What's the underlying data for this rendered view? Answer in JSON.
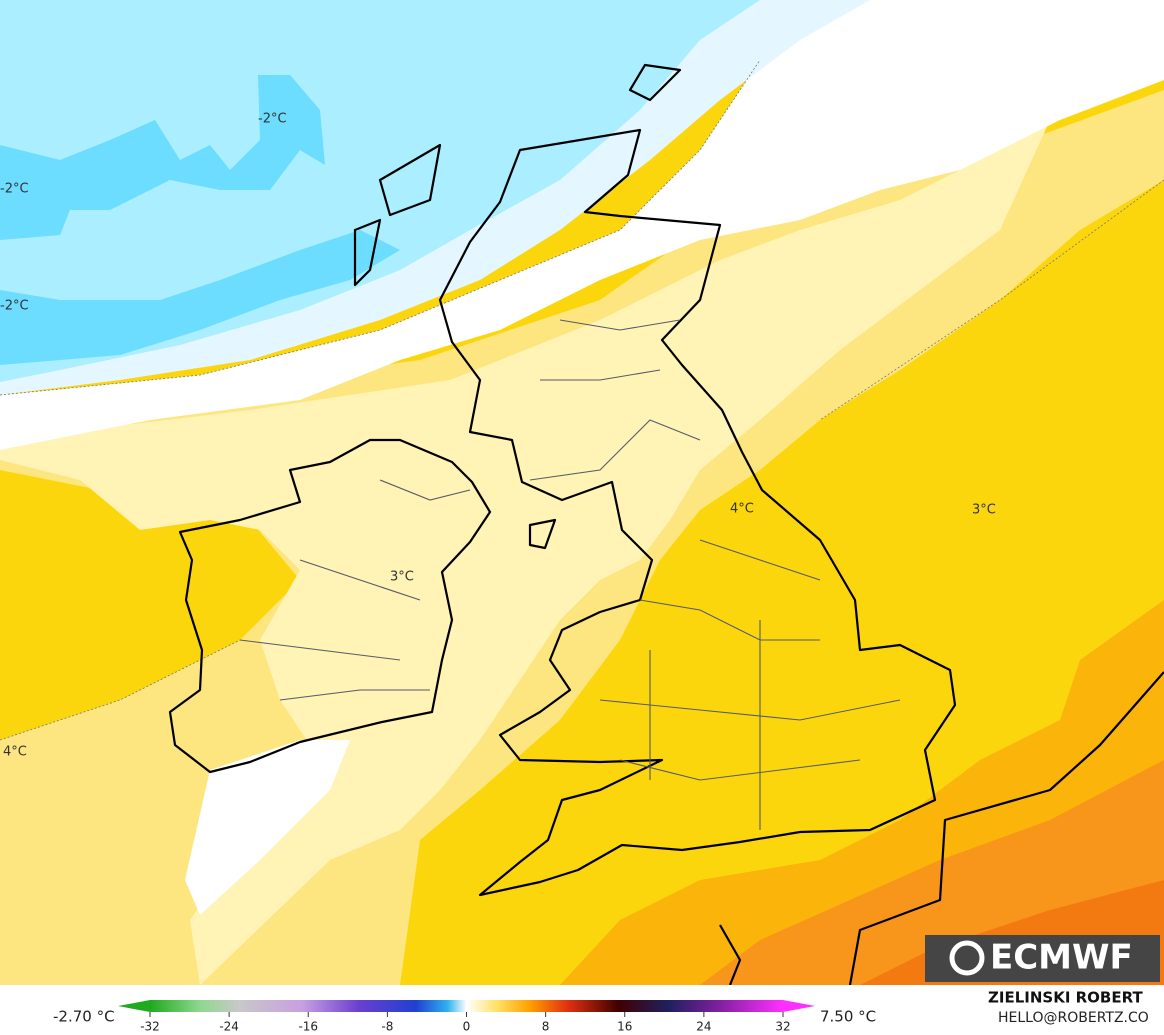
{
  "map": {
    "contour_labels": [
      "-2°C",
      "-2°C",
      "-2°C",
      "3°C",
      "3°C",
      "4°C",
      "4°C"
    ],
    "logo": "ECMWF",
    "colorbar": {
      "min_label": "-2.70 °C",
      "max_label": "7.50 °C",
      "ticks": [
        -32,
        -24,
        -16,
        -8,
        0,
        8,
        16,
        24,
        32
      ],
      "lim": [
        -32,
        32
      ]
    },
    "credit": {
      "author": "ZIELINSKI ROBERT",
      "contact": "HELLO@ROBERTZ.CO"
    }
  }
}
